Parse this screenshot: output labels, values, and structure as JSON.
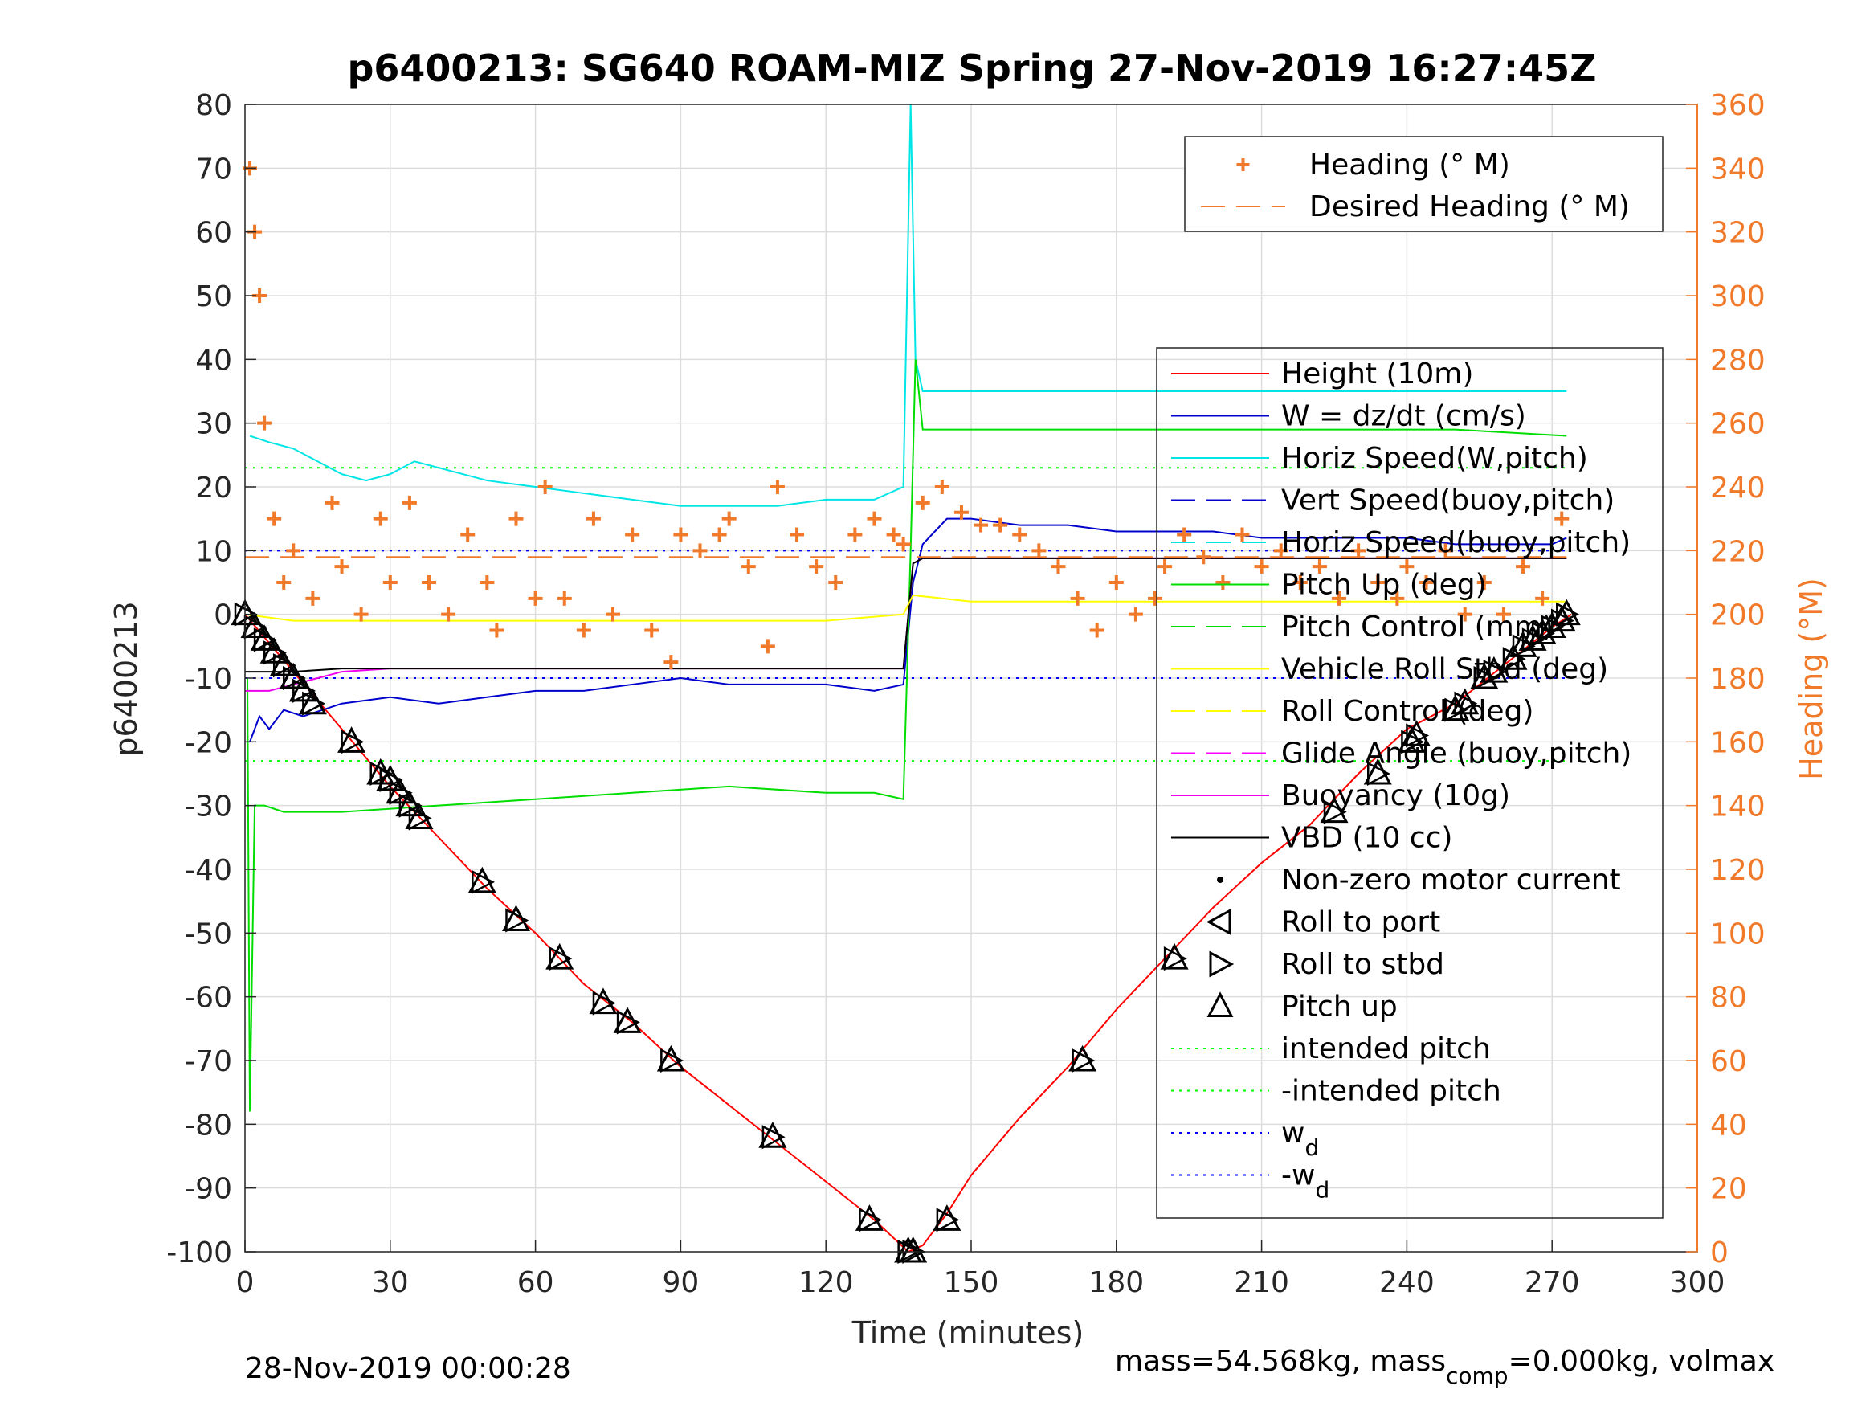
{
  "chart_data": {
    "type": "line",
    "title": "p6400213: SG640 ROAM-MIZ Spring 27-Nov-2019 16:27:45Z",
    "xlabel": "Time (minutes)",
    "ylabel": "p6400213",
    "y2label": "Heading (°M)",
    "xlim": [
      0,
      300
    ],
    "ylim": [
      -100,
      80
    ],
    "y2lim": [
      0,
      360
    ],
    "xticks": [
      "0",
      "30",
      "60",
      "90",
      "120",
      "150",
      "180",
      "210",
      "240",
      "270",
      "300"
    ],
    "yticks": [
      "80",
      "70",
      "60",
      "50",
      "40",
      "30",
      "20",
      "10",
      "0",
      "-10",
      "-20",
      "-30",
      "-40",
      "-50",
      "-60",
      "-70",
      "-80",
      "-90",
      "-100"
    ],
    "y2ticks": [
      "360",
      "340",
      "320",
      "300",
      "280",
      "260",
      "240",
      "220",
      "200",
      "180",
      "160",
      "140",
      "120",
      "100",
      "80",
      "60",
      "40",
      "20",
      "0"
    ],
    "grid": true,
    "footer_left": "28-Nov-2019 00:00:28",
    "footer_right_a": "mass=54.568kg, mass",
    "footer_right_sub": "comp",
    "footer_right_b": "=0.000kg, volmax",
    "legend_top": [
      {
        "label": "Heading (° M)",
        "style": "plus",
        "color": "#f07a2a"
      },
      {
        "label": "Desired Heading (° M)",
        "style": "dash",
        "color": "#f07a2a"
      }
    ],
    "legend_main": [
      {
        "label": "Height (10m)",
        "style": "solid",
        "color": "#ff0000"
      },
      {
        "label": "W = dz/dt (cm/s)",
        "style": "solid",
        "color": "#0000cc"
      },
      {
        "label": "Horiz Speed(W,pitch)",
        "style": "solid",
        "color": "#00e5e5"
      },
      {
        "label": "Vert Speed(buoy,pitch)",
        "style": "dash",
        "color": "#0000cc"
      },
      {
        "label": "Horiz Speed(buoy,pitch)",
        "style": "dash",
        "color": "#00e5e5"
      },
      {
        "label": "Pitch Up (deg)",
        "style": "solid",
        "color": "#00dd00"
      },
      {
        "label": "Pitch Control (mm)",
        "style": "dash",
        "color": "#00dd00"
      },
      {
        "label": "Vehicle Roll Stbd (deg)",
        "style": "solid",
        "color": "#ffff00"
      },
      {
        "label": "Roll Control (deg)",
        "style": "dash",
        "color": "#ffff00"
      },
      {
        "label": "Glide Angle (buoy,pitch)",
        "style": "dash",
        "color": "#ff00ff"
      },
      {
        "label": "Buoyancy (10g)",
        "style": "solid",
        "color": "#ee00ee"
      },
      {
        "label": "VBD (10 cc)",
        "style": "solid",
        "color": "#000000"
      },
      {
        "label": "Non-zero motor current",
        "style": "dot",
        "color": "#000000"
      },
      {
        "label": "Roll to port",
        "style": "tri-left",
        "color": "#000000"
      },
      {
        "label": "Roll to stbd",
        "style": "tri-right",
        "color": "#000000"
      },
      {
        "label": "Pitch up",
        "style": "tri-up",
        "color": "#000000"
      },
      {
        "label": "intended pitch",
        "style": "dotted",
        "color": "#00ff00"
      },
      {
        "label": "-intended pitch",
        "style": "dotted",
        "color": "#00ff00"
      },
      {
        "label": "w",
        "sub": "d",
        "style": "dotted",
        "color": "#0000ff"
      },
      {
        "label": "-w",
        "sub": "d",
        "style": "dotted",
        "color": "#0000ff"
      }
    ],
    "reference_lines": [
      {
        "name": "intended pitch",
        "y": 23,
        "color": "#00ff00"
      },
      {
        "name": "-intended pitch",
        "y": -23,
        "color": "#00ff00"
      },
      {
        "name": "w_d",
        "y": 10,
        "color": "#0000ff"
      },
      {
        "name": "-w_d",
        "y": -10,
        "color": "#0000ff"
      }
    ],
    "series": [
      {
        "name": "Height (10m)",
        "color": "#ff0000",
        "x": [
          0,
          10,
          20,
          30,
          40,
          50,
          60,
          70,
          80,
          90,
          100,
          110,
          120,
          130,
          137,
          140,
          145,
          150,
          160,
          170,
          180,
          190,
          200,
          210,
          220,
          230,
          240,
          250,
          260,
          270,
          274
        ],
        "y": [
          0,
          -9,
          -18,
          -27,
          -35,
          -43,
          -50,
          -58,
          -64,
          -71,
          -77,
          -83,
          -89,
          -95,
          -100,
          -99,
          -94,
          -88,
          -79,
          -71,
          -62,
          -54,
          -46,
          -39,
          -33,
          -25,
          -18,
          -14,
          -8,
          -2,
          0
        ]
      },
      {
        "name": "W = dz/dt (cm/s)",
        "color": "#0000cc",
        "x": [
          1,
          3,
          5,
          8,
          12,
          20,
          30,
          40,
          50,
          60,
          70,
          80,
          90,
          100,
          110,
          120,
          130,
          136,
          138,
          140,
          145,
          150,
          160,
          170,
          180,
          190,
          200,
          210,
          220,
          230,
          240,
          250,
          260,
          270,
          273
        ],
        "y": [
          -20,
          -16,
          -18,
          -15,
          -16,
          -14,
          -13,
          -14,
          -13,
          -12,
          -12,
          -11,
          -10,
          -11,
          -11,
          -11,
          -12,
          -11,
          5,
          11,
          15,
          15,
          14,
          14,
          13,
          13,
          13,
          12,
          12,
          12,
          12,
          11,
          11,
          11,
          12
        ]
      },
      {
        "name": "Horiz Speed(W,pitch)",
        "color": "#00e5e5",
        "x": [
          1,
          5,
          10,
          15,
          20,
          25,
          30,
          35,
          40,
          50,
          60,
          70,
          80,
          90,
          100,
          110,
          120,
          130,
          136,
          137.5,
          138.5,
          140,
          150,
          200,
          250,
          273
        ],
        "y": [
          28,
          27,
          26,
          24,
          22,
          21,
          22,
          24,
          23,
          21,
          20,
          19,
          18,
          17,
          17,
          17,
          18,
          18,
          20,
          80,
          40,
          35,
          35,
          35,
          35,
          35
        ]
      },
      {
        "name": "Pitch Up (deg)",
        "color": "#00dd00",
        "x": [
          0.5,
          1,
          2,
          4,
          8,
          20,
          40,
          60,
          80,
          100,
          120,
          130,
          136,
          137.5,
          138.5,
          140,
          150,
          200,
          250,
          273
        ],
        "y": [
          -10,
          -78,
          -30,
          -30,
          -31,
          -31,
          -30,
          -29,
          -28,
          -27,
          -28,
          -28,
          -29,
          10,
          40,
          29,
          29,
          29,
          29,
          28
        ]
      },
      {
        "name": "Buoyancy (10g)",
        "color": "#ee00ee",
        "x": [
          0,
          5,
          10,
          20,
          30,
          60,
          90,
          120,
          136,
          138,
          140,
          200,
          273
        ],
        "y": [
          -12,
          -12,
          -11,
          -9,
          -8.5,
          -8.5,
          -8.5,
          -8.5,
          -8.5,
          8,
          8.8,
          8.8,
          8.8
        ]
      },
      {
        "name": "VBD (10 cc)",
        "color": "#000000",
        "x": [
          0,
          10,
          20,
          60,
          100,
          136,
          138,
          140,
          200,
          273
        ],
        "y": [
          -9,
          -9,
          -8.5,
          -8.5,
          -8.5,
          -8.5,
          8,
          8.8,
          8.8,
          8.8
        ]
      },
      {
        "name": "Vehicle Roll Stbd (deg)",
        "color": "#ffff00",
        "x": [
          0,
          10,
          30,
          60,
          90,
          120,
          136,
          138,
          150,
          200,
          240,
          273
        ],
        "y": [
          0,
          -1,
          -1,
          -1,
          -1,
          -1,
          0,
          3,
          2,
          2,
          2,
          2
        ]
      },
      {
        "name": "Heading (° M)",
        "color": "#f07a2a",
        "axis": "right",
        "x": [
          1,
          2,
          3,
          4,
          6,
          8,
          10,
          14,
          18,
          20,
          24,
          28,
          30,
          34,
          38,
          42,
          46,
          50,
          52,
          56,
          60,
          62,
          66,
          70,
          72,
          76,
          80,
          84,
          88,
          90,
          94,
          98,
          100,
          104,
          108,
          110,
          114,
          118,
          122,
          126,
          130,
          134,
          136,
          140,
          144,
          148,
          152,
          156,
          160,
          164,
          168,
          172,
          176,
          180,
          184,
          188,
          190,
          194,
          198,
          202,
          206,
          210,
          214,
          218,
          222,
          226,
          230,
          234,
          238,
          240,
          244,
          248,
          252,
          256,
          260,
          264,
          268,
          272
        ],
        "y": [
          340,
          320,
          300,
          260,
          230,
          210,
          220,
          205,
          235,
          215,
          200,
          230,
          210,
          235,
          210,
          200,
          225,
          210,
          195,
          230,
          205,
          240,
          205,
          195,
          230,
          200,
          225,
          195,
          185,
          225,
          220,
          225,
          230,
          215,
          190,
          240,
          225,
          215,
          210,
          225,
          230,
          225,
          222,
          235,
          240,
          232,
          228,
          228,
          225,
          220,
          215,
          205,
          195,
          210,
          200,
          205,
          215,
          225,
          218,
          210,
          225,
          215,
          220,
          210,
          215,
          205,
          220,
          210,
          205,
          215,
          210,
          220,
          200,
          210,
          200,
          215,
          205,
          230
        ]
      },
      {
        "name": "Desired Heading (° M)",
        "color": "#f07a2a",
        "axis": "right",
        "x": [
          0,
          136,
          138,
          273
        ],
        "y": [
          218,
          218,
          218,
          218
        ]
      }
    ],
    "pitch_up_markers": {
      "x": [
        0,
        2,
        4,
        6,
        8,
        10,
        12,
        14,
        22,
        28,
        30,
        32,
        34,
        36,
        49,
        56,
        65,
        74,
        79,
        88,
        109,
        129,
        137,
        138,
        145,
        173,
        192,
        225,
        234,
        241,
        242,
        250,
        252,
        256,
        258,
        262,
        264,
        266,
        268,
        270,
        272,
        273
      ],
      "y": [
        0,
        -2,
        -4,
        -6,
        -8,
        -10,
        -12,
        -14,
        -20,
        -25,
        -26,
        -28,
        -30,
        -32,
        -42,
        -48,
        -54,
        -61,
        -64,
        -70,
        -82,
        -95,
        -100,
        -100,
        -95,
        -70,
        -54,
        -31,
        -25,
        -20,
        -19,
        -15,
        -14,
        -10,
        -9,
        -7,
        -5,
        -4,
        -3,
        -2,
        -1,
        0
      ]
    }
  }
}
